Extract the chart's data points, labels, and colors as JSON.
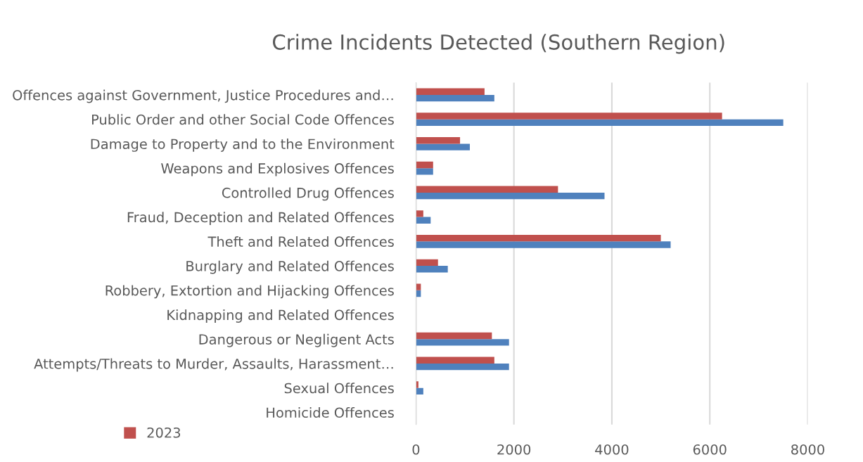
{
  "chart_data": {
    "type": "bar",
    "orientation": "horizontal",
    "title": "Crime Incidents Detected (Southern Region)",
    "categories": [
      "Offences against Government, Justice Procedures and…",
      "Public Order and other Social Code Offences",
      "Damage to Property and to the Environment",
      "Weapons and Explosives Offences",
      "Controlled Drug Offences",
      "Fraud, Deception and Related Offences",
      "Theft and Related Offences",
      "Burglary and Related Offences",
      "Robbery, Extortion and Hijacking Offences",
      "Kidnapping and Related Offences",
      "Dangerous or Negligent Acts",
      "Attempts/Threats to Murder, Assaults, Harassment…",
      "Sexual Offences",
      "Homicide Offences"
    ],
    "series": [
      {
        "color": "#4f81bd",
        "values": [
          1600,
          7500,
          1100,
          350,
          3850,
          300,
          5200,
          650,
          100,
          null,
          1900,
          1900,
          150,
          null
        ]
      },
      {
        "name": "2023",
        "color": "#c0504d",
        "values": [
          1400,
          6250,
          900,
          350,
          2900,
          150,
          5000,
          450,
          100,
          null,
          1550,
          1600,
          50,
          null
        ]
      }
    ],
    "xlim": [
      0,
      8000
    ],
    "xticks": [
      0,
      2000,
      4000,
      6000,
      8000
    ],
    "grid": "x",
    "legend": "bottom left"
  }
}
